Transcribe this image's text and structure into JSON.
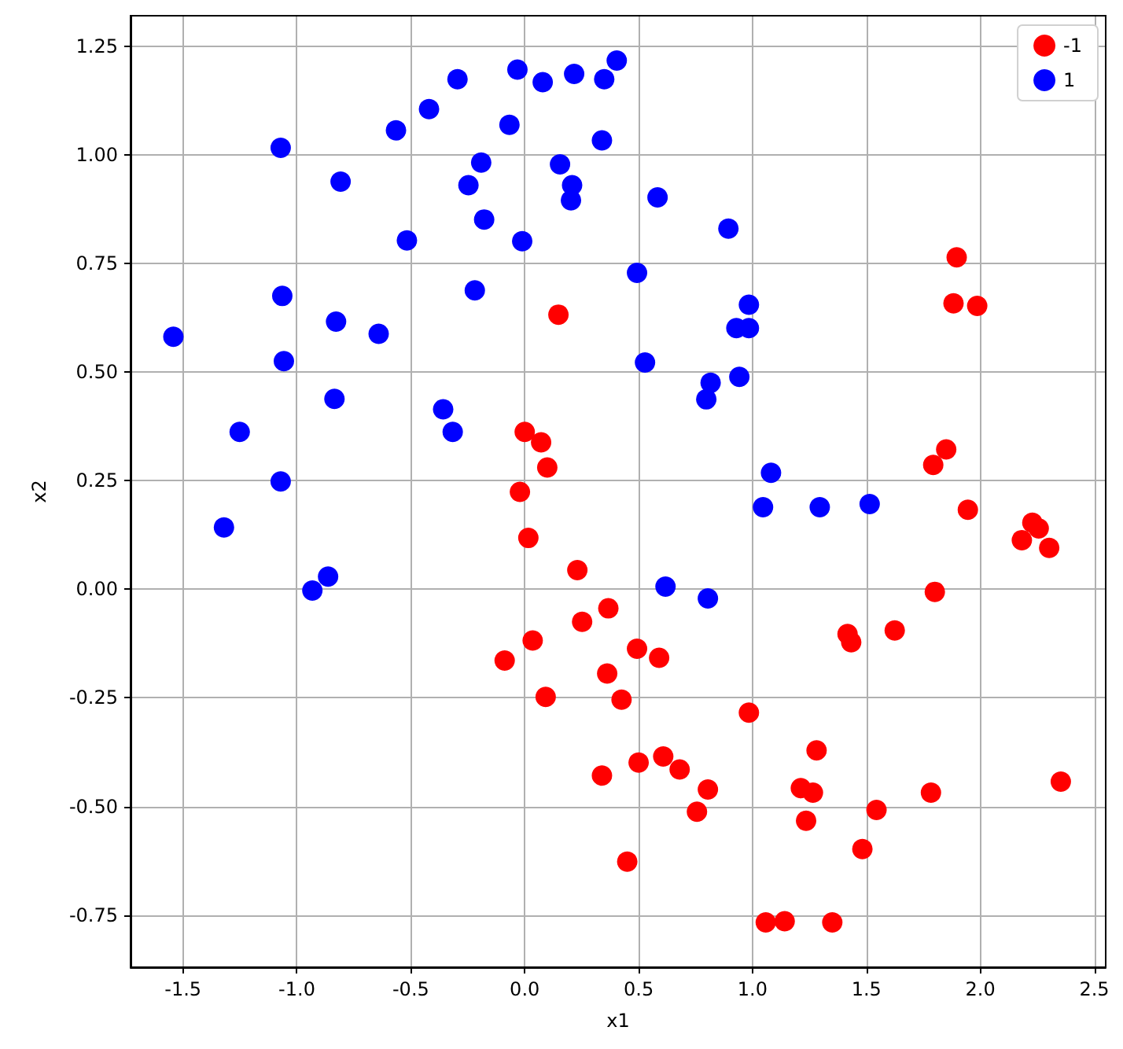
{
  "chart_data": {
    "type": "scatter",
    "xlabel": "x1",
    "ylabel": "x2",
    "marker": "circle",
    "grid": true,
    "legend": "top right",
    "xlim": [
      -1.73,
      2.55
    ],
    "ylim": [
      -0.87,
      1.32
    ],
    "xticks": [
      -1.5,
      {
        "value": -1,
        "label": "-1.0"
      },
      -0.5,
      {
        "value": 0,
        "label": "0.0"
      },
      0.5,
      {
        "value": 1,
        "label": "1.0"
      },
      1.5,
      {
        "value": 2,
        "label": "2.0"
      },
      2.5
    ],
    "yticks": [
      -0.75,
      {
        "value": -0.5,
        "label": "-0.50"
      },
      -0.25,
      {
        "value": 0,
        "label": "0.00"
      },
      0.25,
      {
        "value": 0.5,
        "label": "0.50"
      },
      0.75,
      {
        "value": 1,
        "label": "1.00"
      },
      1.25
    ],
    "series": [
      {
        "name": "-1",
        "color": "#ff0000",
        "x": [
          0.148,
          0.0,
          0.072,
          0.099,
          -0.021,
          0.016,
          0.231,
          0.367,
          0.252,
          0.035,
          -0.088,
          0.362,
          0.092,
          0.425,
          0.339,
          0.45,
          1.896,
          1.882,
          1.986,
          1.85,
          1.793,
          1.945,
          2.228,
          2.256,
          2.182,
          2.302,
          1.8,
          1.417,
          1.433,
          1.624,
          0.493,
          0.59,
          0.984,
          1.281,
          0.608,
          0.5,
          0.68,
          1.212,
          1.265,
          0.804,
          0.756,
          1.783,
          2.353,
          1.544,
          1.235,
          1.482,
          1.058,
          1.141,
          1.35
        ],
        "values": [
          0.632,
          0.362,
          0.338,
          0.28,
          0.224,
          0.118,
          0.044,
          -0.044,
          -0.075,
          -0.118,
          -0.164,
          -0.194,
          -0.248,
          -0.254,
          -0.429,
          -0.627,
          0.764,
          0.658,
          0.652,
          0.322,
          0.286,
          0.183,
          0.153,
          0.14,
          0.113,
          0.095,
          -0.006,
          -0.103,
          -0.122,
          -0.095,
          -0.137,
          -0.158,
          -0.284,
          -0.371,
          -0.385,
          -0.399,
          -0.415,
          -0.458,
          -0.468,
          -0.461,
          -0.512,
          -0.468,
          -0.443,
          -0.508,
          -0.533,
          -0.598,
          -0.767,
          -0.764,
          -0.767
        ]
      },
      {
        "name": "1",
        "color": "#0000ff",
        "x": [
          0.404,
          -0.032,
          -0.295,
          0.079,
          0.217,
          0.349,
          -0.42,
          -0.565,
          -0.067,
          0.339,
          -1.071,
          -0.191,
          0.155,
          -0.808,
          -0.247,
          0.208,
          0.203,
          -0.178,
          -0.517,
          -0.011,
          -1.064,
          -0.219,
          -0.828,
          -1.542,
          -0.641,
          -1.057,
          -0.835,
          -0.358,
          -0.316,
          -1.251,
          -1.071,
          -1.32,
          -0.863,
          -0.932,
          0.583,
          0.894,
          0.493,
          0.984,
          0.929,
          0.984,
          0.528,
          0.816,
          0.797,
          0.942,
          1.081,
          1.046,
          1.295,
          1.514,
          0.618,
          0.804
        ],
        "values": [
          1.217,
          1.196,
          1.174,
          1.167,
          1.186,
          1.174,
          1.105,
          1.056,
          1.069,
          1.033,
          1.016,
          0.982,
          0.978,
          0.938,
          0.93,
          0.93,
          0.895,
          0.851,
          0.803,
          0.801,
          0.675,
          0.688,
          0.616,
          0.581,
          0.588,
          0.525,
          0.438,
          0.414,
          0.362,
          0.362,
          0.248,
          0.142,
          0.029,
          -0.003,
          0.902,
          0.83,
          0.728,
          0.655,
          0.601,
          0.601,
          0.522,
          0.475,
          0.437,
          0.489,
          0.268,
          0.189,
          0.189,
          0.196,
          0.006,
          -0.021
        ]
      }
    ]
  }
}
